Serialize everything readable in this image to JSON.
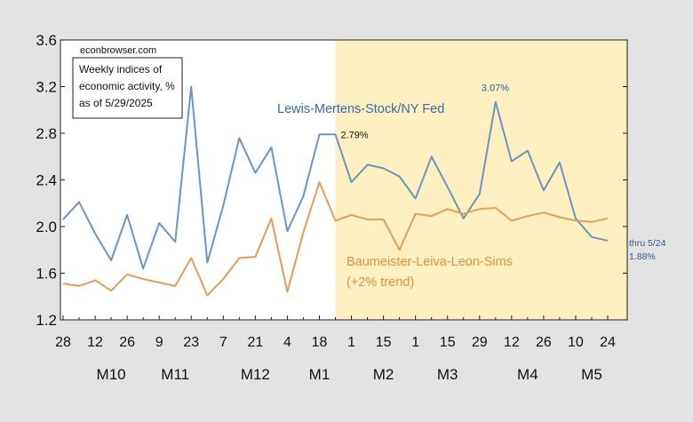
{
  "chart_data": {
    "type": "line",
    "source_label": "econbrowser.com",
    "title_box": [
      "Weekly indices of",
      "economic activity, %",
      "as of 5/29/2025"
    ],
    "ylim": [
      1.2,
      3.6
    ],
    "y_ticks": [
      "1.2",
      "1.6",
      "2.0",
      "2.4",
      "2.8",
      "3.2",
      "3.6"
    ],
    "x_tick_labels": [
      "28",
      "12",
      "26",
      "9",
      "23",
      "7",
      "21",
      "4",
      "18",
      "1",
      "15",
      "1",
      "15",
      "29",
      "12",
      "26",
      "10",
      "24"
    ],
    "x_tick_positions": [
      0,
      2,
      4,
      6,
      8,
      10,
      12,
      14,
      16,
      18,
      20,
      22,
      24,
      26,
      28,
      30,
      32,
      34
    ],
    "month_labels": [
      {
        "label": "M10",
        "pos": 3
      },
      {
        "label": "M11",
        "pos": 7
      },
      {
        "label": "M12",
        "pos": 12
      },
      {
        "label": "M1",
        "pos": 16
      },
      {
        "label": "M2",
        "pos": 20
      },
      {
        "label": "M3",
        "pos": 24
      },
      {
        "label": "M4",
        "pos": 29
      },
      {
        "label": "M5",
        "pos": 33
      }
    ],
    "x_count": 35,
    "shaded_region": {
      "from": 17,
      "to": 34,
      "color": "#fdf0c0"
    },
    "series": [
      {
        "name": "Lewis-Mertens-Stock/NY Fed",
        "color": "#6f93c4",
        "values": [
          2.06,
          2.21,
          1.94,
          1.71,
          2.1,
          1.64,
          2.03,
          1.87,
          3.2,
          1.69,
          2.18,
          2.76,
          2.46,
          2.68,
          1.96,
          2.26,
          2.79,
          2.79,
          2.38,
          2.53,
          2.5,
          2.43,
          2.24,
          2.6,
          2.34,
          2.07,
          2.28,
          3.07,
          2.56,
          2.65,
          2.31,
          2.55,
          2.07,
          1.91,
          1.88
        ]
      },
      {
        "name": "Baumeister-Leiva-Leon-Sims",
        "name_line2": "(+2% trend)",
        "color": "#e49d58",
        "values": [
          1.51,
          1.49,
          1.54,
          1.45,
          1.59,
          1.55,
          1.52,
          1.49,
          1.73,
          1.41,
          1.55,
          1.73,
          1.74,
          2.07,
          1.44,
          1.95,
          2.38,
          2.05,
          2.1,
          2.06,
          2.06,
          1.8,
          2.11,
          2.09,
          2.15,
          2.11,
          2.15,
          2.16,
          2.05,
          2.09,
          2.12,
          2.08,
          2.05,
          2.04,
          2.07
        ]
      }
    ],
    "annotations": [
      {
        "text": "2.79%",
        "x": 17,
        "y": 2.79,
        "color": "#111111"
      },
      {
        "text": "3.07%",
        "x": 27,
        "y": 3.07,
        "color": "#2d5a9a"
      },
      {
        "text": "thru 5/24",
        "x": 34,
        "y": 1.88,
        "color": "#2d5a9a"
      },
      {
        "text": "1.88%",
        "x": 34,
        "y": 1.88,
        "color": "#2d5a9a"
      }
    ],
    "grid": false
  }
}
